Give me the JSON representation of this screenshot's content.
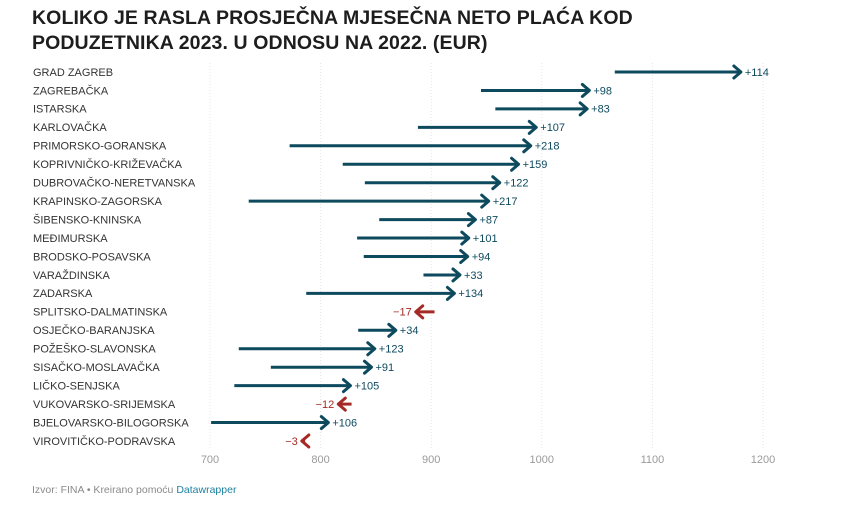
{
  "title": {
    "line1": "KOLIKO JE RASLA PROSJEČNA MJESEČNA NETO PLAĆA KOD",
    "line2": "PODUZETNIKA 2023. U ODNOSU NA 2022. (EUR)"
  },
  "footer": {
    "source": "Izvor: FINA • Kreirano pomoću",
    "tool": "Datawrapper"
  },
  "colors": {
    "increase": "#0e4a5e",
    "decrease": "#a52a25",
    "grid": "#e4e4e4"
  },
  "chart_data": {
    "type": "arrow",
    "title": "KOLIKO JE RASLA PROSJEČNA MJESEČNA NETO PLAĆA KOD PODUZETNIKA 2023. U ODNOSU NA 2022. (EUR)",
    "xlim": [
      700,
      1200
    ],
    "xticks": [
      700,
      800,
      900,
      1000,
      1100,
      1200
    ],
    "rows": [
      {
        "name": "GRAD ZAGREB",
        "start": 1066,
        "end": 1180,
        "label": "+114"
      },
      {
        "name": "ZAGREBAČKA",
        "start": 945,
        "end": 1043,
        "label": "+98"
      },
      {
        "name": "ISTARSKA",
        "start": 958,
        "end": 1041,
        "label": "+83"
      },
      {
        "name": "KARLOVAČKA",
        "start": 888,
        "end": 995,
        "label": "+107"
      },
      {
        "name": "PRIMORSKO-GORANSKA",
        "start": 772,
        "end": 990,
        "label": "+218"
      },
      {
        "name": "KOPRIVNIČKO-KRIŽEVAČKA",
        "start": 820,
        "end": 979,
        "label": "+159"
      },
      {
        "name": "DUBROVAČKO-NERETVANSKA",
        "start": 840,
        "end": 962,
        "label": "+122"
      },
      {
        "name": "KRAPINSKO-ZAGORSKA",
        "start": 735,
        "end": 952,
        "label": "+217"
      },
      {
        "name": "ŠIBENSKO-KNINSKA",
        "start": 853,
        "end": 940,
        "label": "+87"
      },
      {
        "name": "MEĐIMURSKA",
        "start": 833,
        "end": 934,
        "label": "+101"
      },
      {
        "name": "BRODSKO-POSAVSKA",
        "start": 839,
        "end": 933,
        "label": "+94"
      },
      {
        "name": "VARAŽDINSKA",
        "start": 893,
        "end": 926,
        "label": "+33"
      },
      {
        "name": "ZADARSKA",
        "start": 787,
        "end": 921,
        "label": "+134"
      },
      {
        "name": "SPLITSKO-DALMATINSKA",
        "start": 903,
        "end": 886,
        "label": "−17"
      },
      {
        "name": "OSJEČKO-BARANJSKA",
        "start": 834,
        "end": 868,
        "label": "+34"
      },
      {
        "name": "POŽEŠKO-SLAVONSKA",
        "start": 726,
        "end": 849,
        "label": "+123"
      },
      {
        "name": "SISAČKO-MOSLAVAČKA",
        "start": 755,
        "end": 846,
        "label": "+91"
      },
      {
        "name": "LIČKO-SENJSKA",
        "start": 722,
        "end": 827,
        "label": "+105"
      },
      {
        "name": "VUKOVARSKO-SRIJEMSKA",
        "start": 828,
        "end": 816,
        "label": "−12"
      },
      {
        "name": "BJELOVARSKO-BILOGORSKA",
        "start": 701,
        "end": 807,
        "label": "+106"
      },
      {
        "name": "VIROVITIČKO-PODRAVSKA",
        "start": 786,
        "end": 783,
        "label": "−3"
      }
    ]
  }
}
